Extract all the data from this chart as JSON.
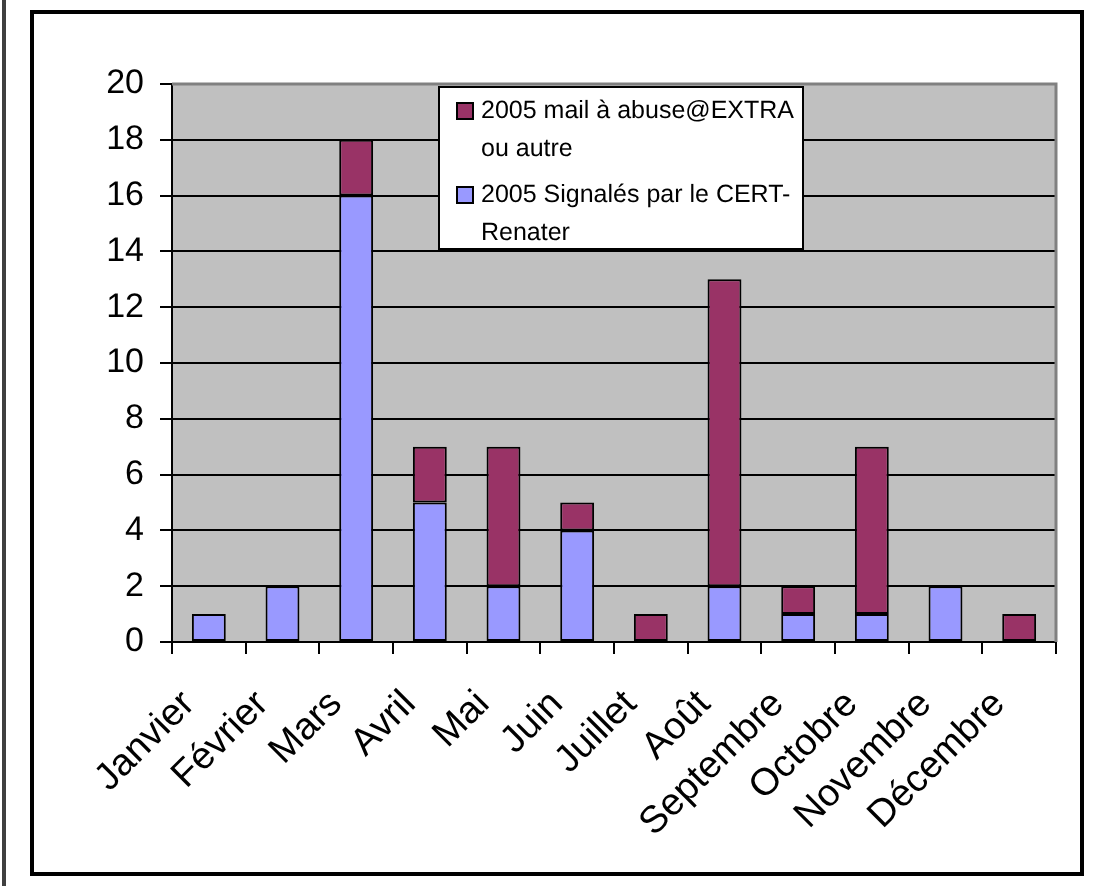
{
  "chart_data": {
    "type": "bar",
    "stacked": true,
    "categories": [
      "Janvier",
      "Février",
      "Mars",
      "Avril",
      "Mai",
      "Juin",
      "Juillet",
      "Août",
      "Septembre",
      "Octobre",
      "Novembre",
      "Décembre"
    ],
    "series": [
      {
        "name": "2005 Signalés par le CERT-Renater",
        "color": "#9999ff",
        "values": [
          1,
          2,
          16,
          5,
          2,
          4,
          0,
          2,
          1,
          1,
          2,
          0
        ]
      },
      {
        "name": "2005 mail à abuse@EXTRA ou autre",
        "color": "#993366",
        "values": [
          0,
          0,
          2,
          2,
          5,
          1,
          1,
          11,
          1,
          6,
          0,
          1
        ]
      }
    ],
    "ylim": [
      0,
      20
    ],
    "yticks": [
      0,
      2,
      4,
      6,
      8,
      10,
      12,
      14,
      16,
      18,
      20
    ],
    "grid": "y",
    "legend": "top"
  }
}
